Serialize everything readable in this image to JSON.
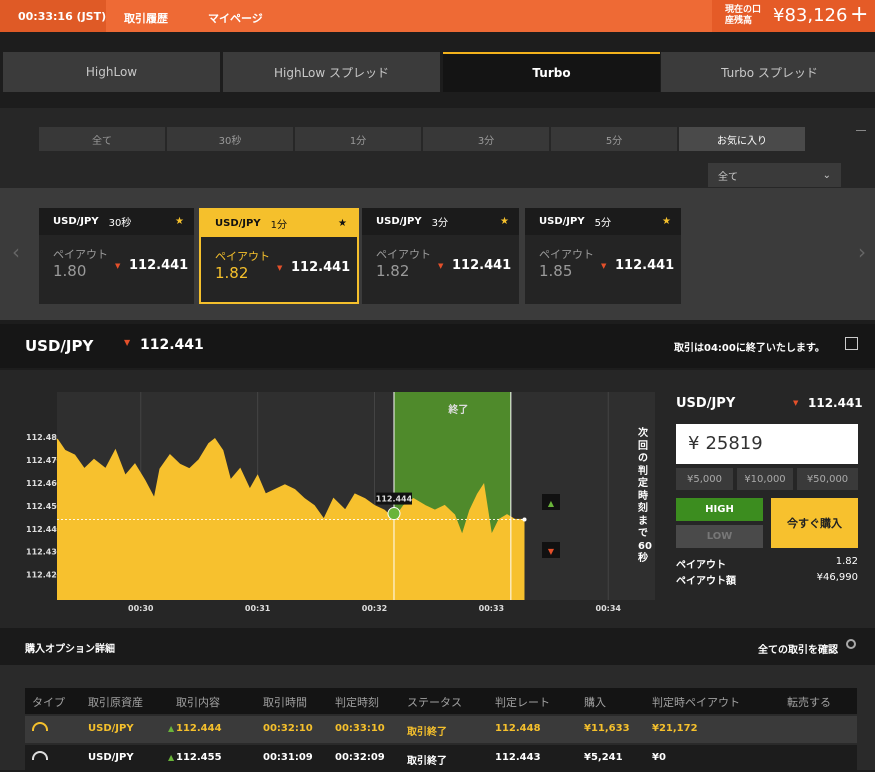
{
  "header": {
    "time": "00:33:16 (JST)",
    "links": [
      "取引履歴",
      "マイページ"
    ],
    "balance_label": "現在の口座残高",
    "balance": "¥83,126",
    "add": "+"
  },
  "tabs": [
    "HighLow",
    "HighLow スプレッド",
    "Turbo",
    "Turbo スプレッド"
  ],
  "filters": [
    "全て",
    "30秒",
    "1分",
    "3分",
    "5分",
    "お気に入り"
  ],
  "dropdown": "全て",
  "cards": [
    {
      "pair": "USD/JPY",
      "duration": "30秒",
      "payout_label": "ペイアウト",
      "payout": "1.80",
      "rate": "112.441"
    },
    {
      "pair": "USD/JPY",
      "duration": "1分",
      "payout_label": "ペイアウト",
      "payout": "1.82",
      "rate": "112.441"
    },
    {
      "pair": "USD/JPY",
      "duration": "3分",
      "payout_label": "ペイアウト",
      "payout": "1.82",
      "rate": "112.441"
    },
    {
      "pair": "USD/JPY",
      "duration": "5分",
      "payout_label": "ペイアウト",
      "payout": "1.85",
      "rate": "112.441"
    }
  ],
  "quote": {
    "pair": "USD/JPY",
    "rate": "112.441",
    "notice": "取引は04:00に終了いたします。"
  },
  "chart": {
    "type": "area",
    "color": "#f7c12e",
    "xlim": [
      1757,
      2064
    ],
    "ylim": [
      112.409,
      112.4995
    ],
    "xticks": [
      {
        "value": 1800,
        "label": "00:30"
      },
      {
        "value": 1860,
        "label": "00:31"
      },
      {
        "value": 1920,
        "label": "00:32"
      },
      {
        "value": 1980,
        "label": "00:33"
      },
      {
        "value": 2040,
        "label": "00:34"
      }
    ],
    "yticks": [
      112.42,
      112.43,
      112.44,
      112.45,
      112.46,
      112.47,
      112.48
    ],
    "x": [
      1757,
      1761,
      1766,
      1771,
      1776,
      1782,
      1787,
      1792,
      1797,
      1802,
      1807,
      1810,
      1815,
      1820,
      1825,
      1830,
      1835,
      1838,
      1842,
      1846,
      1851,
      1856,
      1860,
      1864,
      1869,
      1874,
      1879,
      1884,
      1889,
      1894,
      1899,
      1905,
      1910,
      1915,
      1920,
      1925,
      1930,
      1935,
      1940,
      1946,
      1951,
      1956,
      1961,
      1965,
      1969,
      1973,
      1976,
      1980,
      1984,
      1988,
      1992,
      1997
    ],
    "values": [
      112.479,
      112.474,
      112.472,
      112.466,
      112.47,
      112.466,
      112.474,
      112.463,
      112.468,
      112.461,
      112.453,
      112.466,
      112.472,
      112.468,
      112.466,
      112.47,
      112.477,
      112.479,
      112.474,
      112.461,
      112.466,
      112.457,
      112.463,
      112.455,
      112.457,
      112.459,
      112.457,
      112.453,
      112.45,
      112.444,
      112.453,
      112.448,
      112.455,
      112.453,
      112.45,
      112.448,
      112.444,
      112.45,
      112.453,
      112.45,
      112.448,
      112.45,
      112.446,
      112.437,
      112.448,
      112.455,
      112.459,
      112.437,
      112.444,
      112.446,
      112.444,
      112.444
    ],
    "expiry_zone": {
      "label": "終了",
      "start": 1930,
      "end": 1990
    },
    "entry": {
      "x": 1930,
      "value": 112.444
    },
    "countdown": "次回の判定時刻まで60秒"
  },
  "order": {
    "pair": "USD/JPY",
    "rate": "112.441",
    "currency": "¥",
    "amount": "25819",
    "presets": [
      "¥5,000",
      "¥10,000",
      "¥50,000"
    ],
    "high": "HIGH",
    "low": "LOW",
    "buy": "今すぐ購入",
    "payout_label": "ペイアウト",
    "payout": "1.82",
    "payout_amount_label": "ペイアウト額",
    "payout_amount": "¥46,990"
  },
  "details": {
    "title": "購入オプション詳細",
    "view_all": "全ての取引を確認",
    "columns": [
      "タイプ",
      "取引原資産",
      "取引内容",
      "取引時間",
      "判定時刻",
      "ステータス",
      "判定レート",
      "購入",
      "判定時ペイアウト",
      "転売する"
    ],
    "rows": [
      [
        "USD/JPY",
        "112.444",
        "00:32:10",
        "00:33:10",
        "取引終了",
        "112.448",
        "¥11,633",
        "¥21,172"
      ],
      [
        "USD/JPY",
        "112.455",
        "00:31:09",
        "00:32:09",
        "取引終了",
        "112.443",
        "¥5,241",
        "¥0"
      ]
    ]
  }
}
